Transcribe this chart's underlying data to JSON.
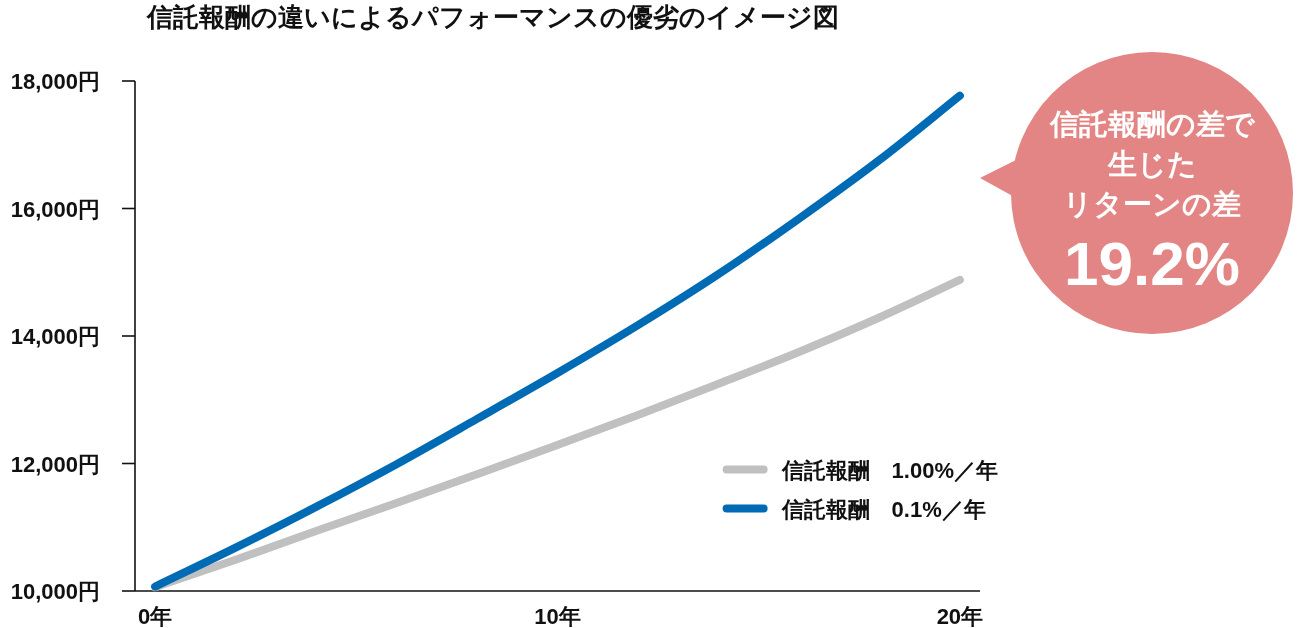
{
  "chart_data": {
    "type": "line",
    "title": "信託報酬の違いによるパフォーマンスの優劣のイメージ図",
    "x": [
      0,
      2,
      4,
      6,
      8,
      10,
      12,
      14,
      16,
      18,
      20
    ],
    "series": [
      {
        "name": "信託報酬　1.00%／年",
        "color": "#c0c0c0",
        "values": [
          10060,
          10490,
          10940,
          11380,
          11830,
          12290,
          12760,
          13250,
          13750,
          14290,
          14880
        ]
      },
      {
        "name": "信託報酬　0.1%／年",
        "color": "#006bb5",
        "values": [
          10070,
          10680,
          11320,
          11990,
          12700,
          13420,
          14170,
          14970,
          15840,
          16760,
          17770
        ]
      }
    ],
    "xlim": [
      -0.5,
      20.5
    ],
    "xticks": [
      {
        "value": 0,
        "label": "0年"
      },
      {
        "value": 10,
        "label": "10年"
      },
      {
        "value": 20,
        "label": "20年"
      }
    ],
    "ylim": [
      10000,
      18000
    ],
    "yticks": [
      {
        "value": 10000,
        "label": "10,000円"
      },
      {
        "value": 12000,
        "label": "12,000円"
      },
      {
        "value": 14000,
        "label": "14,000円"
      },
      {
        "value": 16000,
        "label": "16,000円"
      },
      {
        "value": 18000,
        "label": "18,000円"
      }
    ],
    "legend": "bottom right",
    "annotations": [
      "信託報酬の差で",
      "生じた",
      "リターンの差",
      "19.2%"
    ]
  }
}
